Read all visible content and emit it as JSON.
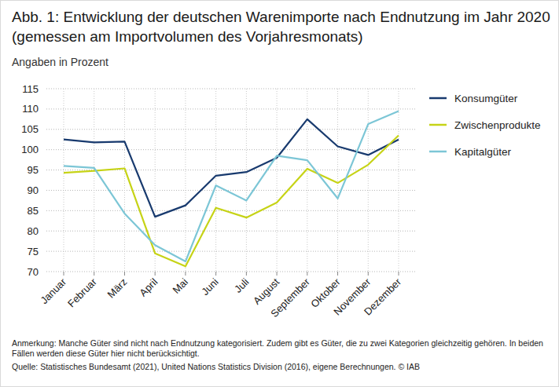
{
  "chart_data": {
    "type": "line",
    "title": "Abb. 1: Entwicklung der deutschen Warenimporte nach Endnutzung im Jahr 2020 (gemessen am Importvolumen des Vorjahresmonats)",
    "subtitle": "Angaben in Prozent",
    "note": "Anmerkung: Manche Güter sind nicht nach Endnutzung kategorisiert. Zudem gibt es Güter, die zu zwei Kategorien gleichzeitig gehören. In beiden Fällen werden diese Güter hier nicht berücksichtigt.",
    "source": "Quelle: Statistisches Bundesamt (2021), United Nations Statistics Division (2016), eigene Berechnungen. © IAB",
    "categories": [
      "Januar",
      "Februar",
      "März",
      "April",
      "Mai",
      "Juni",
      "Juli",
      "August",
      "September",
      "Oktober",
      "November",
      "Dezember"
    ],
    "series": [
      {
        "name": "Konsumgüter",
        "color": "#183a6e",
        "values": [
          102.5,
          101.8,
          102,
          83.5,
          86.3,
          93.6,
          94.5,
          98,
          107.5,
          100.8,
          98.7,
          102.5
        ]
      },
      {
        "name": "Zwischenprodukte",
        "color": "#c6d316",
        "values": [
          94.3,
          94.8,
          95.4,
          74.5,
          71.3,
          85.7,
          83.3,
          87,
          95.3,
          91.8,
          96.3,
          103.5
        ]
      },
      {
        "name": "Kapitalgüter",
        "color": "#7cc6d6",
        "values": [
          96,
          95.5,
          84.3,
          76.5,
          72.5,
          91.2,
          87.5,
          98.5,
          97.4,
          88,
          106.3,
          109.5
        ]
      }
    ],
    "ylim": [
      70,
      115
    ],
    "yticks": [
      70,
      75,
      80,
      85,
      90,
      95,
      100,
      105,
      110,
      115
    ],
    "grid": true,
    "legend": "right"
  }
}
